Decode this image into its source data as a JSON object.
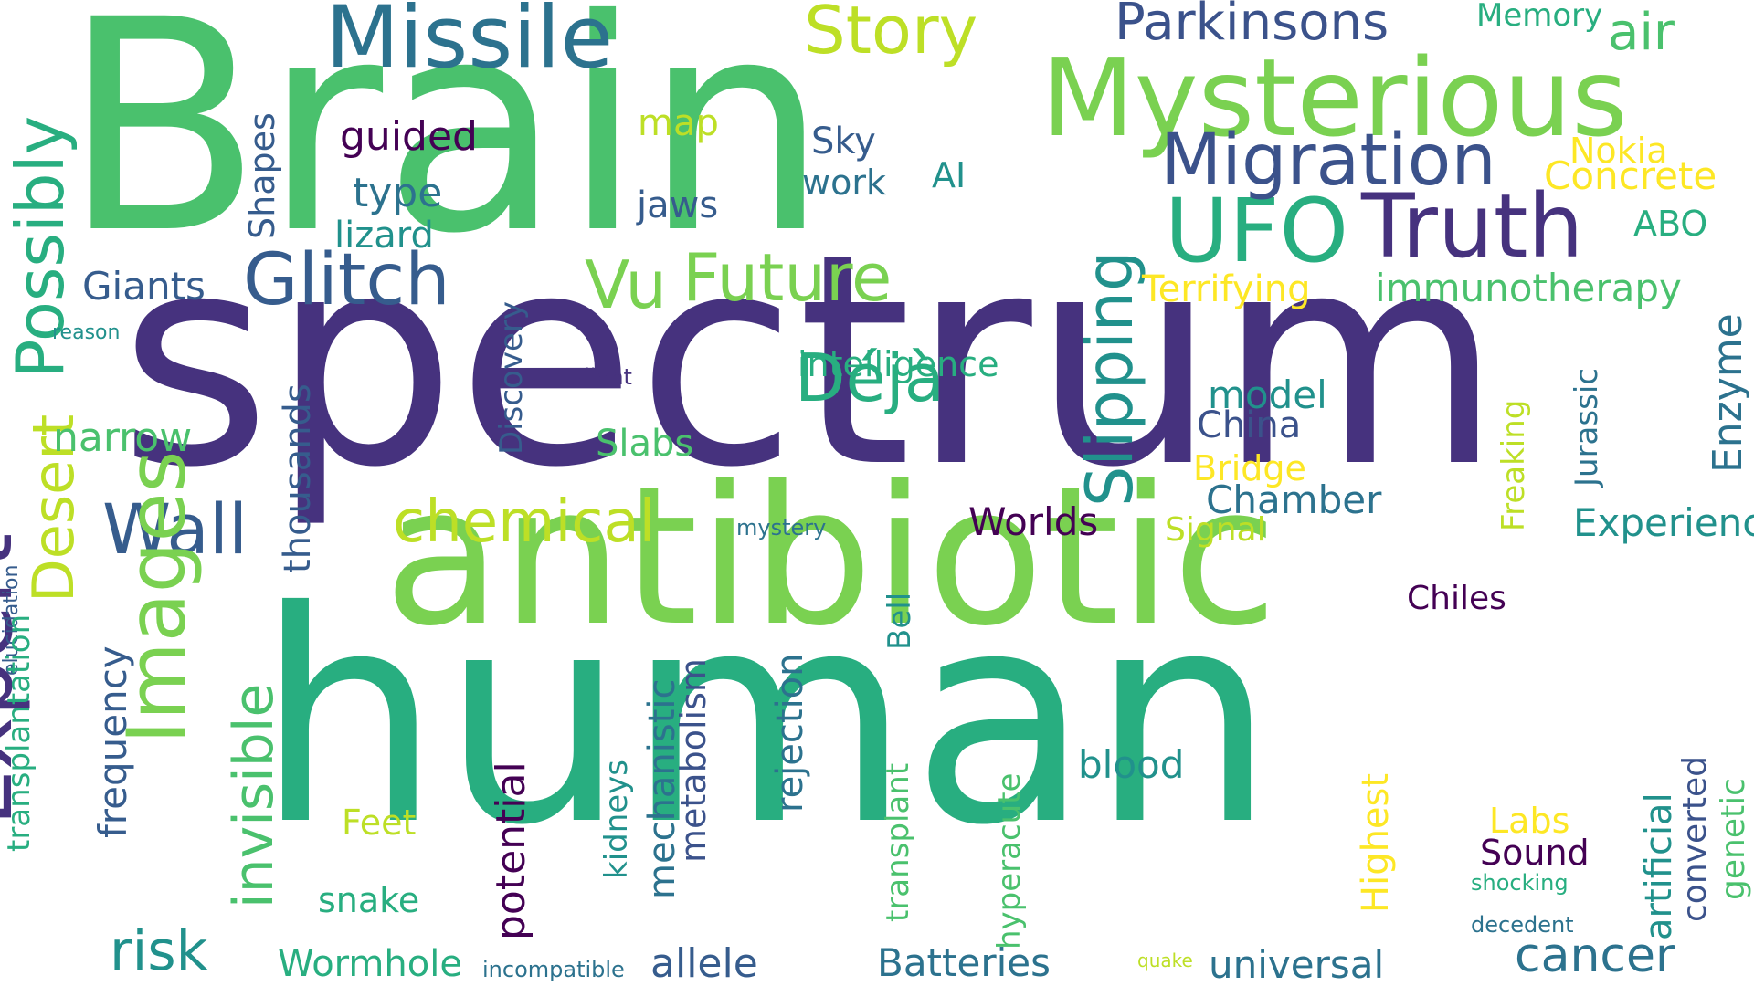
{
  "palette": {
    "dark_purple": "#46327e",
    "deep_purple": "#440154",
    "indigo": "#3b528b",
    "steel_blue": "#365c8d",
    "blue_teal": "#2c728e",
    "teal": "#21918c",
    "green_teal": "#28ae80",
    "green": "#4ac16d",
    "lime": "#7ad151",
    "yellow_green": "#bddf26",
    "yellow": "#fde725"
  },
  "words": [
    {
      "text": "Brain",
      "color": "#4ac16d",
      "weight": 1.0,
      "vertical": false
    },
    {
      "text": "spectrum",
      "color": "#46327e",
      "weight": 1.0,
      "vertical": false
    },
    {
      "text": "antibiotic",
      "color": "#7ad151",
      "weight": 0.95,
      "vertical": false
    },
    {
      "text": "human",
      "color": "#28ae80",
      "weight": 1.0,
      "vertical": false
    },
    {
      "text": "Mysterious",
      "color": "#7ad151",
      "weight": 0.45,
      "vertical": false
    },
    {
      "text": "Missile",
      "color": "#2c728e",
      "weight": 0.35,
      "vertical": false
    },
    {
      "text": "Truth",
      "color": "#46327e",
      "weight": 0.35,
      "vertical": false
    },
    {
      "text": "UFO",
      "color": "#28ae80",
      "weight": 0.35,
      "vertical": false
    },
    {
      "text": "Migration",
      "color": "#3b528b",
      "weight": 0.35,
      "vertical": false
    },
    {
      "text": "Glitch",
      "color": "#365c8d",
      "weight": 0.3,
      "vertical": false
    },
    {
      "text": "Future",
      "color": "#7ad151",
      "weight": 0.3,
      "vertical": false
    },
    {
      "text": "Vu",
      "color": "#7ad151",
      "weight": 0.3,
      "vertical": false
    },
    {
      "text": "Déjà",
      "color": "#28ae80",
      "weight": 0.3,
      "vertical": false
    },
    {
      "text": "Story",
      "color": "#bddf26",
      "weight": 0.28,
      "vertical": false
    },
    {
      "text": "Parkinsons",
      "color": "#3b528b",
      "weight": 0.22,
      "vertical": false
    },
    {
      "text": "air",
      "color": "#4ac16d",
      "weight": 0.2,
      "vertical": false
    },
    {
      "text": "Memory",
      "color": "#28ae80",
      "weight": 0.12,
      "vertical": false
    },
    {
      "text": "Wall",
      "color": "#365c8d",
      "weight": 0.3,
      "vertical": false
    },
    {
      "text": "chemical",
      "color": "#bddf26",
      "weight": 0.3,
      "vertical": false
    },
    {
      "text": "Expert",
      "color": "#46327e",
      "weight": 0.35,
      "vertical": true
    },
    {
      "text": "Images",
      "color": "#7ad151",
      "weight": 0.3,
      "vertical": true
    },
    {
      "text": "Possibly",
      "color": "#28ae80",
      "weight": 0.28,
      "vertical": true
    },
    {
      "text": "Desert",
      "color": "#bddf26",
      "weight": 0.25,
      "vertical": true
    },
    {
      "text": "Slipping",
      "color": "#21918c",
      "weight": 0.3,
      "vertical": true
    },
    {
      "text": "invisible",
      "color": "#4ac16d",
      "weight": 0.25,
      "vertical": true
    },
    {
      "text": "risk",
      "color": "#21918c",
      "weight": 0.25,
      "vertical": false
    },
    {
      "text": "narrow",
      "color": "#4ac16d",
      "weight": 0.2,
      "vertical": false
    },
    {
      "text": "Giants",
      "color": "#365c8d",
      "weight": 0.18,
      "vertical": false
    },
    {
      "text": "reason",
      "color": "#21918c",
      "weight": 0.09,
      "vertical": false
    },
    {
      "text": "guided",
      "color": "#440154",
      "weight": 0.2,
      "vertical": false
    },
    {
      "text": "type",
      "color": "#2c728e",
      "weight": 0.2,
      "vertical": false
    },
    {
      "text": "lizard",
      "color": "#21918c",
      "weight": 0.18,
      "vertical": false
    },
    {
      "text": "map",
      "color": "#bddf26",
      "weight": 0.18,
      "vertical": false
    },
    {
      "text": "jaws",
      "color": "#365c8d",
      "weight": 0.18,
      "vertical": false
    },
    {
      "text": "Sky",
      "color": "#365c8d",
      "weight": 0.18,
      "vertical": false
    },
    {
      "text": "work",
      "color": "#2c728e",
      "weight": 0.17,
      "vertical": false
    },
    {
      "text": "AI",
      "color": "#21918c",
      "weight": 0.17,
      "vertical": false
    },
    {
      "text": "Nokia",
      "color": "#fde725",
      "weight": 0.17,
      "vertical": false
    },
    {
      "text": "Concrete",
      "color": "#fde725",
      "weight": 0.2,
      "vertical": false
    },
    {
      "text": "ABO",
      "color": "#28ae80",
      "weight": 0.17,
      "vertical": false
    },
    {
      "text": "Terrifying",
      "color": "#fde725",
      "weight": 0.2,
      "vertical": false
    },
    {
      "text": "immunotherapy",
      "color": "#4ac16d",
      "weight": 0.2,
      "vertical": false
    },
    {
      "text": "intelligence",
      "color": "#2c728e",
      "weight": 0.22,
      "vertical": true
    },
    {
      "text": "Silent",
      "color": "#28ae80",
      "weight": 0.18,
      "vertical": false
    },
    {
      "text": "model",
      "color": "#46327e",
      "weight": 0.1,
      "vertical": false
    },
    {
      "text": "China",
      "color": "#21918c",
      "weight": 0.2,
      "vertical": false
    },
    {
      "text": "Bridge",
      "color": "#3b528b",
      "weight": 0.2,
      "vertical": false
    },
    {
      "text": "Chamber",
      "color": "#fde725",
      "weight": 0.18,
      "vertical": false
    },
    {
      "text": "Slabs",
      "color": "#2c728e",
      "weight": 0.2,
      "vertical": false
    },
    {
      "text": "Worlds",
      "color": "#4ac16d",
      "weight": 0.19,
      "vertical": false
    },
    {
      "text": "Signal",
      "color": "#440154",
      "weight": 0.2,
      "vertical": false
    },
    {
      "text": "Experience",
      "color": "#bddf26",
      "weight": 0.18,
      "vertical": false
    },
    {
      "text": "mystery",
      "color": "#21918c",
      "weight": 0.2,
      "vertical": false
    },
    {
      "text": "Chiles",
      "color": "#2c728e",
      "weight": 0.11,
      "vertical": false
    },
    {
      "text": "Shapes",
      "color": "#440154",
      "weight": 0.18,
      "vertical": false
    },
    {
      "text": "Discovery",
      "color": "#365c8d",
      "weight": 0.2,
      "vertical": true
    },
    {
      "text": "thousands",
      "color": "#365c8d",
      "weight": 0.17,
      "vertical": true
    },
    {
      "text": "frequency",
      "color": "#365c8d",
      "weight": 0.2,
      "vertical": true
    },
    {
      "text": "elucidation",
      "color": "#365c8d",
      "weight": 0.2,
      "vertical": true
    },
    {
      "text": "transplantation",
      "color": "#365c8d",
      "weight": 0.1,
      "vertical": true
    },
    {
      "text": "Bell",
      "color": "#28ae80",
      "weight": 0.17,
      "vertical": true
    },
    {
      "text": "rejection",
      "color": "#21918c",
      "weight": 0.17,
      "vertical": true
    },
    {
      "text": "mechanistic",
      "color": "#2c728e",
      "weight": 0.2,
      "vertical": true
    },
    {
      "text": "metabolism",
      "color": "#2c728e",
      "weight": 0.2,
      "vertical": true
    },
    {
      "text": "kidneys",
      "color": "#3b528b",
      "weight": 0.18,
      "vertical": true
    },
    {
      "text": "potential",
      "color": "#21918c",
      "weight": 0.17,
      "vertical": true
    },
    {
      "text": "transplant",
      "color": "#440154",
      "weight": 0.22,
      "vertical": true
    },
    {
      "text": "hyperacute",
      "color": "#4ac16d",
      "weight": 0.17,
      "vertical": true
    },
    {
      "text": "Highest",
      "color": "#4ac16d",
      "weight": 0.17,
      "vertical": true
    },
    {
      "text": "Freaking",
      "color": "#fde725",
      "weight": 0.2,
      "vertical": true
    },
    {
      "text": "Jurassic",
      "color": "#bddf26",
      "weight": 0.17,
      "vertical": true
    },
    {
      "text": "Enzyme",
      "color": "#2c728e",
      "weight": 0.17,
      "vertical": true
    },
    {
      "text": "artificial",
      "color": "#21918c",
      "weight": 0.2,
      "vertical": true
    },
    {
      "text": "converted",
      "color": "#3b528b",
      "weight": 0.18,
      "vertical": true
    },
    {
      "text": "genetic",
      "color": "#4ac16d",
      "weight": 0.18,
      "vertical": true
    },
    {
      "text": "blood",
      "color": "#21918c",
      "weight": 0.2,
      "vertical": false
    },
    {
      "text": "Labs",
      "color": "#fde725",
      "weight": 0.18,
      "vertical": false
    },
    {
      "text": "Sound",
      "color": "#440154",
      "weight": 0.18,
      "vertical": false
    },
    {
      "text": "shocking",
      "color": "#28ae80",
      "weight": 0.11,
      "vertical": false
    },
    {
      "text": "decedent",
      "color": "#2c728e",
      "weight": 0.11,
      "vertical": false
    },
    {
      "text": "Feet",
      "color": "#bddf26",
      "weight": 0.17,
      "vertical": false
    },
    {
      "text": "snake",
      "color": "#28ae80",
      "weight": 0.17,
      "vertical": false
    },
    {
      "text": "Wormhole",
      "color": "#28ae80",
      "weight": 0.2,
      "vertical": false
    },
    {
      "text": "incompatible",
      "color": "#2c728e",
      "weight": 0.1,
      "vertical": false
    },
    {
      "text": "allele",
      "color": "#365c8d",
      "weight": 0.2,
      "vertical": false
    },
    {
      "text": "Batteries",
      "color": "#2c728e",
      "weight": 0.2,
      "vertical": false
    },
    {
      "text": "quake",
      "color": "#bddf26",
      "weight": 0.09,
      "vertical": false
    },
    {
      "text": "universal",
      "color": "#2c728e",
      "weight": 0.2,
      "vertical": false
    },
    {
      "text": "cancer",
      "color": "#2c728e",
      "weight": 0.25,
      "vertical": false
    }
  ]
}
